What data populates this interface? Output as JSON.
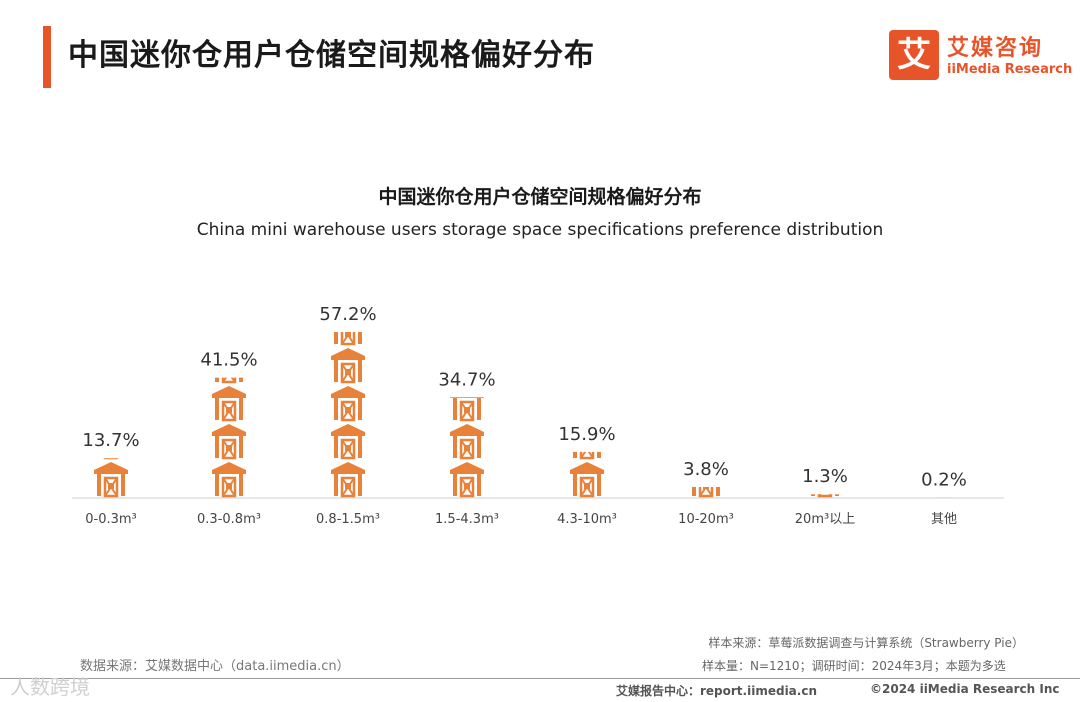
{
  "header": {
    "title": "中国迷你仓用户仓储空间规格偏好分布",
    "logo_icon": "艾",
    "logo_cn": "艾媒咨询",
    "logo_en": "iiMedia Research"
  },
  "colors": {
    "accent": "#e8542a",
    "bar": "#e8823a"
  },
  "chart_data": {
    "type": "bar",
    "title": "中国迷你仓用户仓储空间规格偏好分布",
    "subtitle": "China mini warehouse users storage space specifications preference distribution",
    "categories": [
      "0-0.3m³",
      "0.3-0.8m³",
      "0.8-1.5m³",
      "1.5-4.3m³",
      "4.3-10m³",
      "10-20m³",
      "20m³以上",
      "其他"
    ],
    "values": [
      13.7,
      41.5,
      57.2,
      34.7,
      15.9,
      3.8,
      1.3,
      0.2
    ],
    "labels": [
      "13.7%",
      "41.5%",
      "57.2%",
      "34.7%",
      "15.9%",
      "3.8%",
      "1.3%",
      "0.2%"
    ],
    "unit": "%",
    "ylim": [
      0,
      57.2
    ]
  },
  "footer": {
    "data_source": "数据来源：艾媒数据中心（data.iimedia.cn）",
    "sample_source": "样本来源：草莓派数据调查与计算系统（Strawberry Pie）",
    "sample_info": "样本量：N=1210；调研时间：2024年3月；本题为多选",
    "report_center": "艾媒报告中心：report.iimedia.cn",
    "copyright": "©2024  iiMedia Research  Inc",
    "watermark": "人数跨境"
  }
}
